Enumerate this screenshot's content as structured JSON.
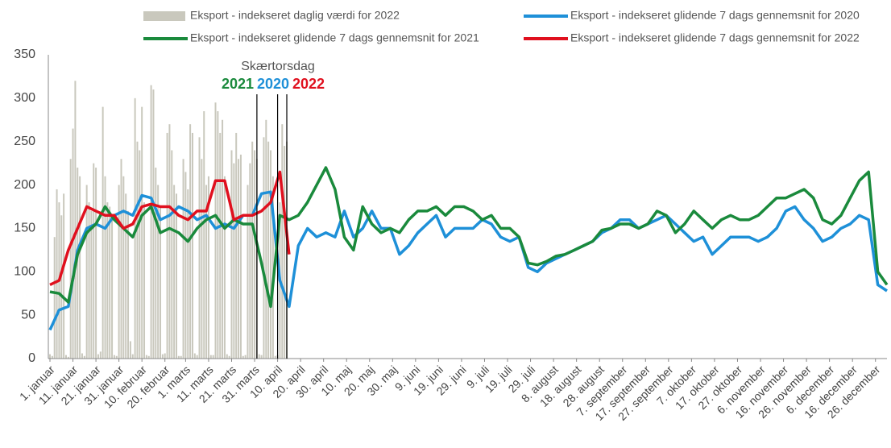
{
  "chart_data": {
    "type": "line",
    "xlim": [
      1,
      365
    ],
    "ylim": [
      0,
      350
    ],
    "yticks": [
      0,
      50,
      100,
      150,
      200,
      250,
      300,
      350
    ],
    "xticks": [
      {
        "value": 1,
        "label": "1. januar"
      },
      {
        "value": 11,
        "label": "11. januar"
      },
      {
        "value": 21,
        "label": "21. januar"
      },
      {
        "value": 31,
        "label": "31. januar"
      },
      {
        "value": 41,
        "label": "10. februar"
      },
      {
        "value": 51,
        "label": "20. februar"
      },
      {
        "value": 60,
        "label": "1. marts"
      },
      {
        "value": 70,
        "label": "11. marts"
      },
      {
        "value": 80,
        "label": "21. marts"
      },
      {
        "value": 90,
        "label": "31. marts"
      },
      {
        "value": 100,
        "label": "10. april"
      },
      {
        "value": 110,
        "label": "20. april"
      },
      {
        "value": 120,
        "label": "30. april"
      },
      {
        "value": 130,
        "label": "10. maj"
      },
      {
        "value": 140,
        "label": "20. maj"
      },
      {
        "value": 150,
        "label": "30. maj"
      },
      {
        "value": 160,
        "label": "9. juni"
      },
      {
        "value": 170,
        "label": "19. juni"
      },
      {
        "value": 180,
        "label": "29. juni"
      },
      {
        "value": 190,
        "label": "9. juli"
      },
      {
        "value": 200,
        "label": "19. juli"
      },
      {
        "value": 210,
        "label": "29. juli"
      },
      {
        "value": 220,
        "label": "8. august"
      },
      {
        "value": 230,
        "label": "18. august"
      },
      {
        "value": 240,
        "label": "28. august"
      },
      {
        "value": 250,
        "label": "7. september"
      },
      {
        "value": 260,
        "label": "17. september"
      },
      {
        "value": 270,
        "label": "27. september"
      },
      {
        "value": 280,
        "label": "7. oktober"
      },
      {
        "value": 290,
        "label": "17. oktober"
      },
      {
        "value": 300,
        "label": "27. oktober"
      },
      {
        "value": 310,
        "label": "6. november"
      },
      {
        "value": 320,
        "label": "16. november"
      },
      {
        "value": 330,
        "label": "26. november"
      },
      {
        "value": 340,
        "label": "6. december"
      },
      {
        "value": 350,
        "label": "16. december"
      },
      {
        "value": 360,
        "label": "26. december"
      }
    ],
    "grid": false,
    "x": [
      1,
      5,
      9,
      13,
      17,
      21,
      25,
      29,
      33,
      37,
      41,
      45,
      49,
      53,
      57,
      61,
      65,
      69,
      73,
      77,
      81,
      85,
      89,
      93,
      97,
      101,
      105,
      109,
      113,
      117,
      121,
      125,
      129,
      133,
      137,
      141,
      145,
      149,
      153,
      157,
      161,
      165,
      169,
      173,
      177,
      181,
      185,
      189,
      193,
      197,
      201,
      205,
      209,
      213,
      217,
      221,
      225,
      229,
      233,
      237,
      241,
      245,
      249,
      253,
      257,
      261,
      265,
      269,
      273,
      277,
      281,
      285,
      289,
      293,
      297,
      301,
      305,
      309,
      313,
      317,
      321,
      325,
      329,
      333,
      337,
      341,
      345,
      349,
      353,
      357,
      361,
      365
    ],
    "series": [
      {
        "name": "Eksport - indekseret daglig værdi for 2022",
        "type": "bar",
        "color": "#c9c8bd",
        "x": [
          1,
          2,
          3,
          4,
          5,
          6,
          7,
          8,
          9,
          10,
          11,
          12,
          13,
          14,
          15,
          16,
          17,
          18,
          19,
          20,
          21,
          22,
          23,
          24,
          25,
          26,
          27,
          28,
          29,
          30,
          31,
          32,
          33,
          34,
          35,
          36,
          37,
          38,
          39,
          40,
          41,
          42,
          43,
          44,
          45,
          46,
          47,
          48,
          49,
          50,
          51,
          52,
          53,
          54,
          55,
          56,
          57,
          58,
          59,
          60,
          61,
          62,
          63,
          64,
          65,
          66,
          67,
          68,
          69,
          70,
          71,
          72,
          73,
          74,
          75,
          76,
          77,
          78,
          79,
          80,
          81,
          82,
          83,
          84,
          85,
          86,
          87,
          88,
          89,
          90,
          91,
          92,
          93,
          94,
          95,
          96,
          97,
          98,
          99,
          100,
          101,
          102,
          103,
          104
        ],
        "values": [
          5,
          3,
          140,
          195,
          180,
          165,
          190,
          4,
          2,
          230,
          265,
          320,
          220,
          210,
          6,
          3,
          200,
          180,
          170,
          225,
          220,
          5,
          8,
          290,
          210,
          180,
          175,
          160,
          4,
          3,
          200,
          230,
          210,
          190,
          170,
          20,
          5,
          300,
          250,
          240,
          290,
          180,
          4,
          3,
          315,
          310,
          220,
          200,
          175,
          5,
          6,
          260,
          270,
          240,
          200,
          190,
          3,
          3,
          230,
          215,
          195,
          270,
          260,
          6,
          4,
          255,
          230,
          285,
          200,
          210,
          4,
          4,
          295,
          285,
          260,
          275,
          210,
          5,
          3,
          240,
          225,
          260,
          230,
          235,
          3,
          4,
          200,
          225,
          250,
          240,
          230,
          5,
          4,
          255,
          275,
          250,
          240,
          210,
          3,
          4,
          180,
          270,
          245,
          250
        ]
      },
      {
        "name": "Eksport - indekseret glidende 7 dags gennemsnit for 2020",
        "type": "line",
        "color": "#1e90d8",
        "values": [
          33,
          56,
          60,
          125,
          150,
          155,
          150,
          165,
          170,
          165,
          188,
          185,
          160,
          165,
          175,
          170,
          160,
          165,
          150,
          155,
          150,
          165,
          165,
          190,
          192,
          90,
          60,
          130,
          150,
          140,
          145,
          140,
          170,
          140,
          150,
          170,
          150,
          150,
          120,
          130,
          145,
          155,
          165,
          140,
          150,
          150,
          150,
          160,
          155,
          140,
          135,
          140,
          105,
          100,
          110,
          115,
          120,
          125,
          130,
          135,
          145,
          150,
          160,
          160,
          150,
          155,
          160,
          165,
          155,
          145,
          135,
          140,
          120,
          130,
          140,
          140,
          140,
          135,
          140,
          150,
          170,
          175,
          160,
          150,
          135,
          140,
          150,
          155,
          165,
          160,
          85,
          78
        ]
      },
      {
        "name": "Eksport - indekseret glidende 7 dags gennemsnit for 2021",
        "type": "line",
        "color": "#1a8a3c",
        "values": [
          77,
          75,
          65,
          120,
          145,
          155,
          175,
          160,
          150,
          140,
          165,
          175,
          145,
          150,
          145,
          135,
          150,
          160,
          165,
          150,
          160,
          155,
          155,
          110,
          60,
          165,
          160,
          165,
          180,
          200,
          220,
          195,
          140,
          125,
          175,
          155,
          145,
          150,
          145,
          160,
          170,
          170,
          175,
          165,
          175,
          175,
          170,
          160,
          165,
          150,
          150,
          140,
          110,
          108,
          112,
          118,
          120,
          125,
          130,
          135,
          148,
          150,
          155,
          155,
          150,
          155,
          170,
          165,
          145,
          155,
          170,
          160,
          150,
          160,
          165,
          160,
          160,
          165,
          175,
          185,
          185,
          190,
          195,
          185,
          160,
          155,
          165,
          185,
          205,
          215,
          100,
          85
        ]
      },
      {
        "name": "Eksport - indekseret glidende 7 dags gennemsnit for 2022",
        "type": "line",
        "color": "#e0101e",
        "values": [
          85,
          90,
          125,
          150,
          175,
          170,
          165,
          165,
          150,
          155,
          175,
          178,
          175,
          175,
          165,
          160,
          170,
          170,
          205,
          205,
          160,
          165,
          165,
          170,
          180,
          215,
          120,
          null,
          null,
          null,
          null,
          null,
          null,
          null,
          null,
          null,
          null,
          null,
          null,
          null,
          null,
          null,
          null,
          null,
          null,
          null,
          null,
          null,
          null,
          null,
          null,
          null,
          null,
          null,
          null,
          null,
          null,
          null,
          null,
          null,
          null,
          null,
          null,
          null,
          null,
          null,
          null,
          null,
          null,
          null,
          null,
          null,
          null,
          null,
          null,
          null,
          null,
          null,
          null,
          null,
          null,
          null,
          null,
          null,
          null,
          null,
          null,
          null,
          null,
          null,
          null,
          null
        ]
      }
    ],
    "annotation": {
      "text": "Skærtorsdag",
      "years": [
        {
          "text": "2021",
          "color": "#1a8a3c"
        },
        {
          "text": "2020",
          "color": "#1e90d8"
        },
        {
          "text": "2022",
          "color": "#e0101e"
        }
      ],
      "lines": [
        91,
        100,
        104
      ]
    }
  }
}
